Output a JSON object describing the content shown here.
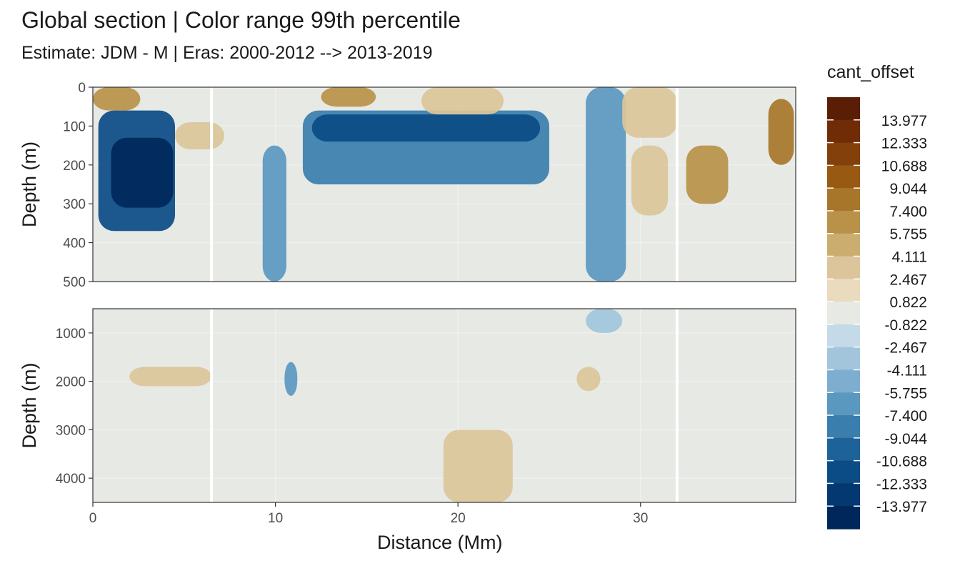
{
  "chart_data": {
    "type": "heatmap",
    "title": "Global section | Color range 99th percentile",
    "subtitle": "Estimate: JDM - M | Eras: 2000-2012 --> 2013-2019",
    "xlabel": "Distance (Mm)",
    "ylabel": "Depth (m)",
    "x_ticks": [
      0,
      10,
      20,
      30
    ],
    "xlim": [
      0,
      38.5
    ],
    "grid": true,
    "legend": {
      "title": "cant_offset",
      "placement": "right",
      "breaks": [
        -13.977,
        -12.333,
        -10.688,
        -9.044,
        -7.4,
        -5.755,
        -4.111,
        -2.467,
        -0.822,
        0.822,
        2.467,
        4.111,
        5.755,
        7.4,
        9.044,
        10.688,
        12.333,
        13.977
      ],
      "labels": [
        "13.977",
        "12.333",
        "10.688",
        "9.044",
        "7.400",
        "5.755",
        "4.111",
        "2.467",
        "0.822",
        "-0.822",
        "-2.467",
        "-4.111",
        "-5.755",
        "-7.400",
        "-9.044",
        "-10.688",
        "-12.333",
        "-13.977"
      ],
      "colors": [
        "#5a1d05",
        "#6f2c06",
        "#84400a",
        "#985a12",
        "#a8762a",
        "#b99148",
        "#ccad70",
        "#dcc59a",
        "#eadbbf",
        "#e7e9e5",
        "#c5dae8",
        "#a2c5dc",
        "#7eaecf",
        "#5b98c0",
        "#3a7eae",
        "#1d6299",
        "#0b4b86",
        "#043870",
        "#00275b"
      ]
    },
    "panels": [
      {
        "name": "upper",
        "ylim": [
          0,
          500
        ],
        "y_ticks": [
          0,
          100,
          200,
          300,
          400,
          500
        ],
        "features": [
          {
            "x": [
              0.3,
              4.5
            ],
            "depth": [
              60,
              370
            ],
            "value": -12.3
          },
          {
            "x": [
              1.0,
              4.4
            ],
            "depth": [
              130,
              310
            ],
            "value": -16.0
          },
          {
            "x": [
              11.5,
              25.0
            ],
            "depth": [
              60,
              250
            ],
            "value": -8.0
          },
          {
            "x": [
              12.0,
              24.5
            ],
            "depth": [
              70,
              140
            ],
            "value": -11.5
          },
          {
            "x": [
              27.0,
              29.2
            ],
            "depth": [
              0,
              500
            ],
            "value": -5.8
          },
          {
            "x": [
              9.3,
              10.6
            ],
            "depth": [
              150,
              500
            ],
            "value": -5.8
          },
          {
            "x": [
              0.0,
              2.6
            ],
            "depth": [
              0,
              60
            ],
            "value": 5.8
          },
          {
            "x": [
              4.5,
              7.2
            ],
            "depth": [
              90,
              160
            ],
            "value": 4.1
          },
          {
            "x": [
              12.5,
              15.5
            ],
            "depth": [
              0,
              50
            ],
            "value": 5.8
          },
          {
            "x": [
              18.0,
              22.5
            ],
            "depth": [
              0,
              70
            ],
            "value": 4.1
          },
          {
            "x": [
              29.0,
              32.0
            ],
            "depth": [
              0,
              130
            ],
            "value": 2.5
          },
          {
            "x": [
              37.0,
              38.4
            ],
            "depth": [
              30,
              200
            ],
            "value": 9.0
          },
          {
            "x": [
              32.5,
              34.8
            ],
            "depth": [
              150,
              300
            ],
            "value": 5.8
          },
          {
            "x": [
              29.5,
              31.5
            ],
            "depth": [
              150,
              330
            ],
            "value": 4.1
          }
        ]
      },
      {
        "name": "lower",
        "ylim": [
          500,
          4500
        ],
        "y_ticks": [
          1000,
          2000,
          3000,
          4000
        ],
        "features": [
          {
            "x": [
              10.5,
              11.2
            ],
            "depth": [
              1600,
              2300
            ],
            "value": -5.8
          },
          {
            "x": [
              19.2,
              23.0
            ],
            "depth": [
              3000,
              4500
            ],
            "value": 2.5
          },
          {
            "x": [
              2.0,
              6.5
            ],
            "depth": [
              1700,
              2100
            ],
            "value": 2.5
          },
          {
            "x": [
              26.5,
              27.8
            ],
            "depth": [
              1700,
              2200
            ],
            "value": 4.1
          },
          {
            "x": [
              27.0,
              29.0
            ],
            "depth": [
              500,
              1000
            ],
            "value": -4.1
          }
        ]
      }
    ]
  }
}
